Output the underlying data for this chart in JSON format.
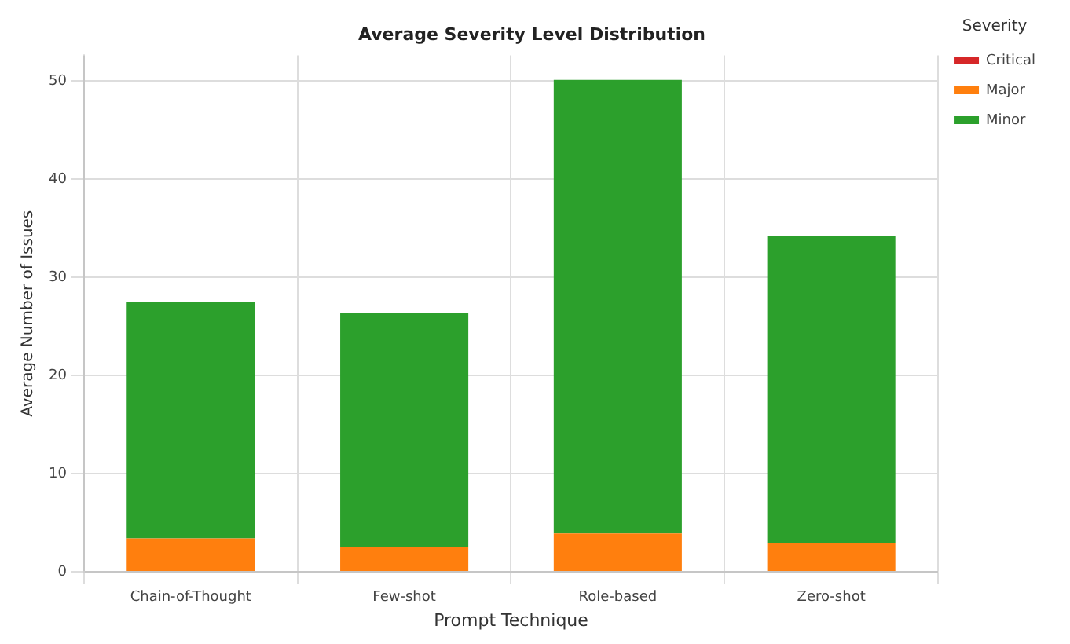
{
  "chart_data": {
    "type": "bar",
    "title": "Average Severity Level Distribution",
    "xlabel": "Prompt Technique",
    "ylabel": "Average Number of Issues",
    "legend_title": "Severity",
    "categories": [
      "Chain-of-Thought",
      "Few-shot",
      "Role-based",
      "Zero-shot"
    ],
    "series": [
      {
        "name": "Critical",
        "color": "#d62728",
        "values": [
          0,
          0,
          0,
          0
        ]
      },
      {
        "name": "Major",
        "color": "#ff7f0e",
        "values": [
          3.4,
          2.5,
          3.9,
          2.9
        ]
      },
      {
        "name": "Minor",
        "color": "#2ca02c",
        "values": [
          24.1,
          23.9,
          46.2,
          31.3
        ]
      }
    ],
    "stacked": true,
    "ylim": [
      0,
      52.6
    ],
    "yticks": [
      0,
      10,
      20,
      30,
      40,
      50
    ],
    "grid": true,
    "legend": "top right"
  }
}
